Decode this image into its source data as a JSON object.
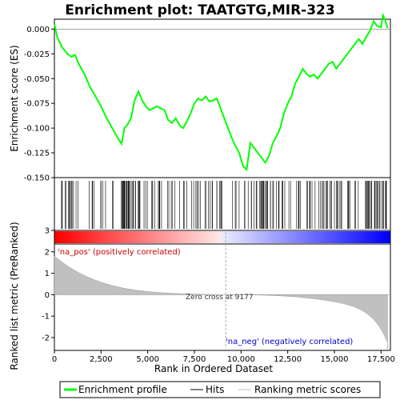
{
  "chart_data": {
    "type": "line",
    "title": "Enrichment plot: TAATGTG,MIR-323",
    "xlabel": "Rank in Ordered Dataset",
    "ylabel_top": "Enrichment score (ES)",
    "ylabel_bottom": "Ranked list metric (PreRanked)",
    "xlim": [
      0,
      18000
    ],
    "x_ticks": [
      0,
      2500,
      5000,
      7500,
      10000,
      12500,
      15000,
      17500
    ],
    "x_tick_labels": [
      "0",
      "2,500",
      "5,000",
      "7,500",
      "10,000",
      "12,500",
      "15,000",
      "17,500"
    ],
    "es_ylim": [
      -0.15,
      0.01
    ],
    "es_ticks": [
      0.0,
      -0.025,
      -0.05,
      -0.075,
      -0.1,
      -0.125,
      -0.15
    ],
    "es_tick_labels": [
      "0.000",
      "-0.025",
      "-0.050",
      "-0.075",
      "-0.100",
      "-0.125",
      "-0.150"
    ],
    "metric_ylim": [
      -2.6,
      3.0
    ],
    "metric_ticks": [
      3,
      2,
      1,
      0,
      -1,
      -2
    ],
    "metric_tick_labels": [
      "3",
      "2",
      "1",
      "0",
      "-1",
      "-2"
    ],
    "series": [
      {
        "name": "Enrichment profile",
        "x": [
          0,
          150,
          400,
          700,
          900,
          1100,
          1300,
          1600,
          1900,
          2200,
          2500,
          2800,
          3100,
          3400,
          3600,
          3750,
          3900,
          4100,
          4300,
          4500,
          4700,
          4900,
          5100,
          5300,
          5500,
          5700,
          5900,
          6100,
          6300,
          6500,
          6700,
          6900,
          7100,
          7300,
          7500,
          7700,
          7900,
          8100,
          8300,
          8500,
          8700,
          8900,
          9100,
          9300,
          9500,
          9700,
          9900,
          10100,
          10300,
          10500,
          10700,
          10900,
          11100,
          11300,
          11500,
          11700,
          11900,
          12100,
          12300,
          12500,
          12700,
          12900,
          13100,
          13300,
          13500,
          13700,
          13900,
          14100,
          14300,
          14500,
          14700,
          14900,
          15100,
          15300,
          15500,
          15700,
          15900,
          16100,
          16300,
          16500,
          16700,
          16900,
          17100,
          17300,
          17500,
          17600,
          17700,
          17850
        ],
        "y": [
          0.005,
          -0.008,
          -0.018,
          -0.025,
          -0.028,
          -0.026,
          -0.035,
          -0.045,
          -0.058,
          -0.068,
          -0.078,
          -0.09,
          -0.1,
          -0.11,
          -0.116,
          -0.1,
          -0.097,
          -0.09,
          -0.072,
          -0.063,
          -0.072,
          -0.078,
          -0.082,
          -0.08,
          -0.078,
          -0.08,
          -0.082,
          -0.092,
          -0.095,
          -0.09,
          -0.097,
          -0.1,
          -0.093,
          -0.085,
          -0.075,
          -0.07,
          -0.072,
          -0.068,
          -0.073,
          -0.072,
          -0.07,
          -0.08,
          -0.09,
          -0.1,
          -0.11,
          -0.118,
          -0.125,
          -0.138,
          -0.142,
          -0.115,
          -0.12,
          -0.125,
          -0.13,
          -0.135,
          -0.128,
          -0.115,
          -0.108,
          -0.1,
          -0.085,
          -0.075,
          -0.068,
          -0.055,
          -0.048,
          -0.04,
          -0.045,
          -0.048,
          -0.046,
          -0.05,
          -0.045,
          -0.04,
          -0.035,
          -0.033,
          -0.04,
          -0.035,
          -0.03,
          -0.025,
          -0.02,
          -0.015,
          -0.01,
          -0.015,
          -0.008,
          -0.002,
          0.008,
          0.003,
          0.002,
          0.014,
          0.01,
          0.001
        ]
      }
    ],
    "hits_count": 120,
    "zero_cross": 9177,
    "labels": {
      "pos": "'na_pos' (positively correlated)",
      "neg": "'na_neg' (negatively correlated)",
      "zero": "Zero cross at 9177"
    },
    "legend": {
      "placement": "bottom",
      "items": [
        "Enrichment profile",
        "Hits",
        "Ranking metric scores"
      ]
    },
    "colors": {
      "profile": "#00ff00",
      "hits": "#000000",
      "metric": "#c0c0c0",
      "pos": "#ff0000",
      "neg": "#0000ff"
    }
  }
}
